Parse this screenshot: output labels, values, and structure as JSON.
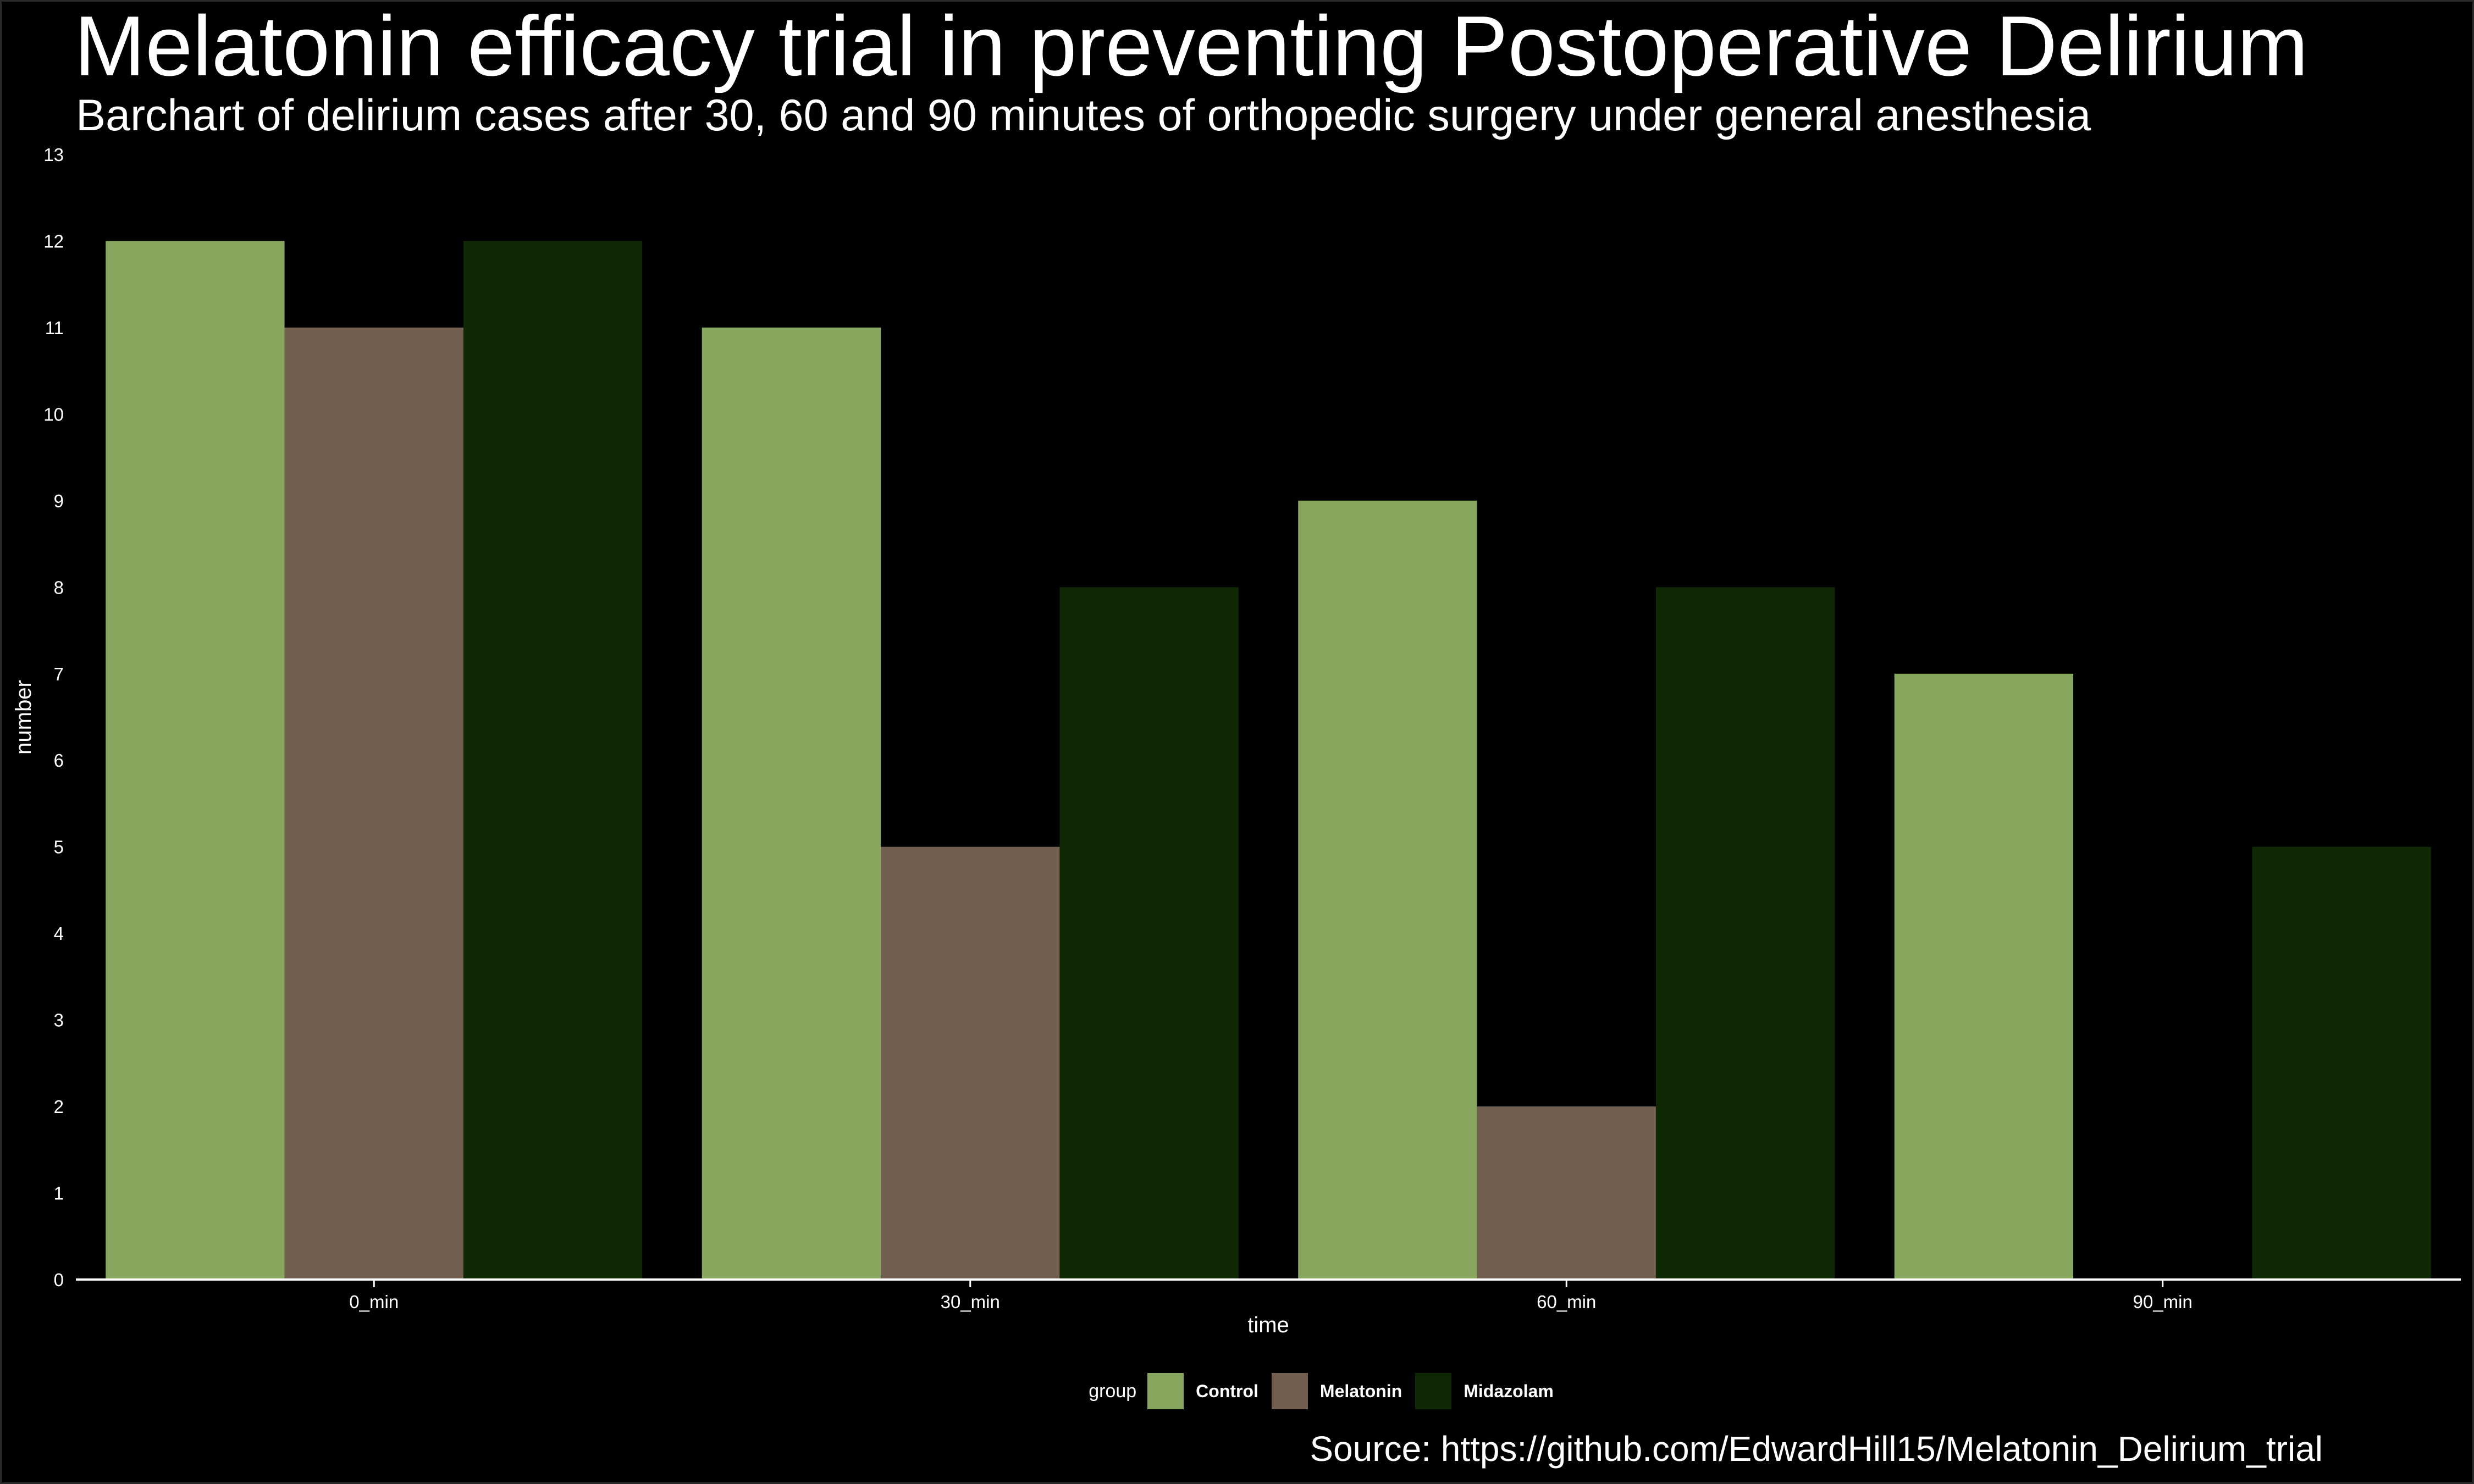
{
  "title": "Melatonin efficacy trial in preventing Postoperative Delirium",
  "subtitle": "Barchart of delirium cases after 30, 60 and 90 minutes of orthopedic surgery under general anesthesia",
  "source": "Source: https://github.com/EdwardHill15/Melatonin_Delirium_trial",
  "legend": {
    "title": "group",
    "items": [
      {
        "label": "Control",
        "color": "#87A65E"
      },
      {
        "label": "Melatonin",
        "color": "#725F50"
      },
      {
        "label": "Midazolam",
        "color": "#0F2904"
      }
    ]
  },
  "chart_data": {
    "type": "bar",
    "title": "Melatonin efficacy trial in preventing Postoperative Delirium",
    "subtitle": "Barchart of delirium cases after 30, 60 and 90 minutes of orthopedic surgery under general anesthesia",
    "xlabel": "time",
    "ylabel": "number",
    "categories": [
      "0_min",
      "30_min",
      "60_min",
      "90_min"
    ],
    "series": [
      {
        "name": "Control",
        "color": "#87A65E",
        "values": [
          12,
          11,
          9,
          7
        ]
      },
      {
        "name": "Melatonin",
        "color": "#725F50",
        "values": [
          11,
          5,
          2,
          0
        ]
      },
      {
        "name": "Midazolam",
        "color": "#0F2904",
        "values": [
          12,
          8,
          8,
          5
        ]
      }
    ],
    "ylim": [
      0,
      13
    ],
    "yticks": [
      "0",
      "1",
      "2",
      "3",
      "4",
      "5",
      "6",
      "7",
      "8",
      "9",
      "10",
      "11",
      "12",
      "13"
    ],
    "grid": false,
    "legend_position": "bottom"
  }
}
